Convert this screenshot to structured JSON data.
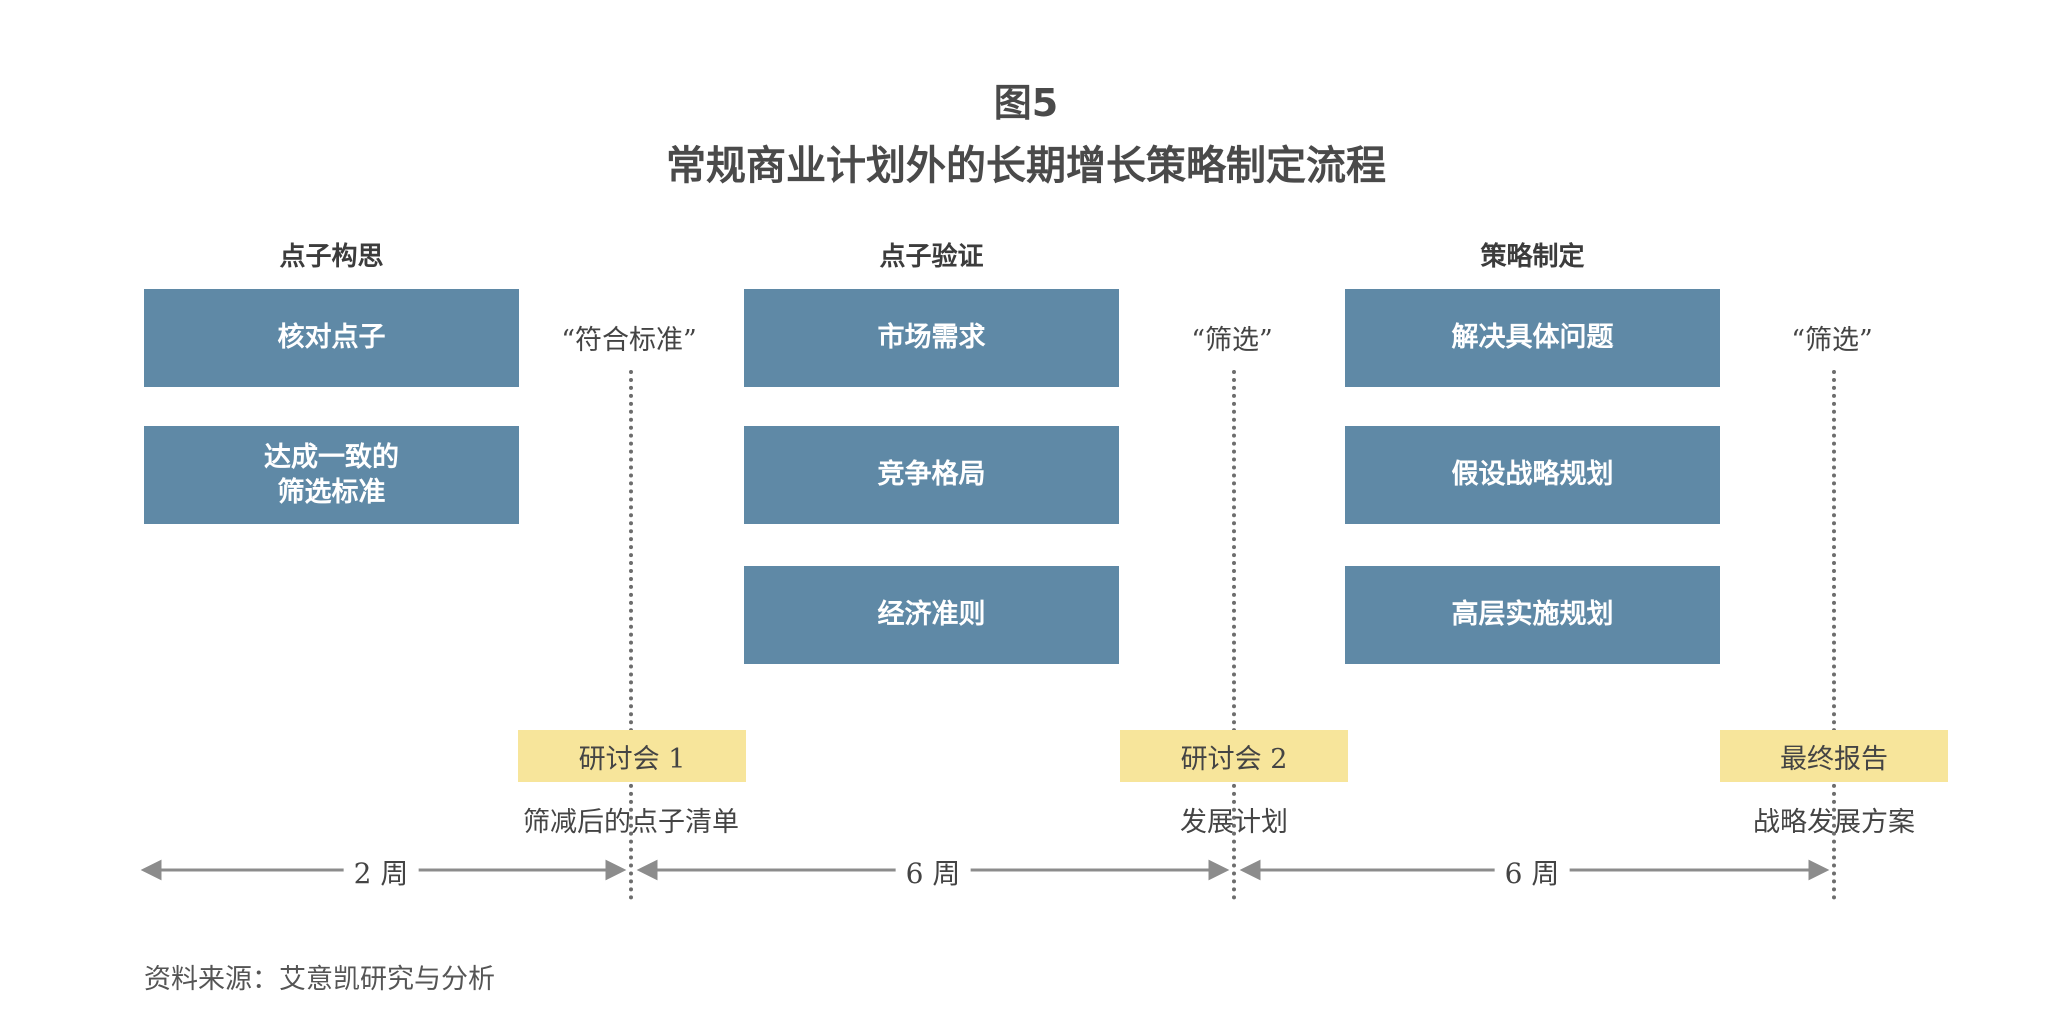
{
  "figure_number": "图5",
  "title": "常规商业计划外的长期增长策略制定流程",
  "phases": [
    {
      "title": "点子构思",
      "activities": [
        "核对点子",
        "达成一致的\n筛选标准"
      ],
      "criteria": "“符合标准”",
      "milestone": "研讨会 1",
      "output": "筛减后的点子清单",
      "duration": "2 周"
    },
    {
      "title": "点子验证",
      "activities": [
        "市场需求",
        "竞争格局",
        "经济准则"
      ],
      "criteria": "“筛选”",
      "milestone": "研讨会 2",
      "output": "发展计划",
      "duration": "6 周"
    },
    {
      "title": "策略制定",
      "activities": [
        "解决具体问题",
        "假设战略规划",
        "高层实施规划"
      ],
      "criteria": "“筛选”",
      "milestone": "最终报告",
      "output": "战略发展方案",
      "duration": "6 周"
    }
  ],
  "source": "资料来源：艾意凯研究与分析",
  "colors": {
    "activity_box": "#5f89a6",
    "milestone_box": "#f7e59b",
    "text": "#444444"
  }
}
